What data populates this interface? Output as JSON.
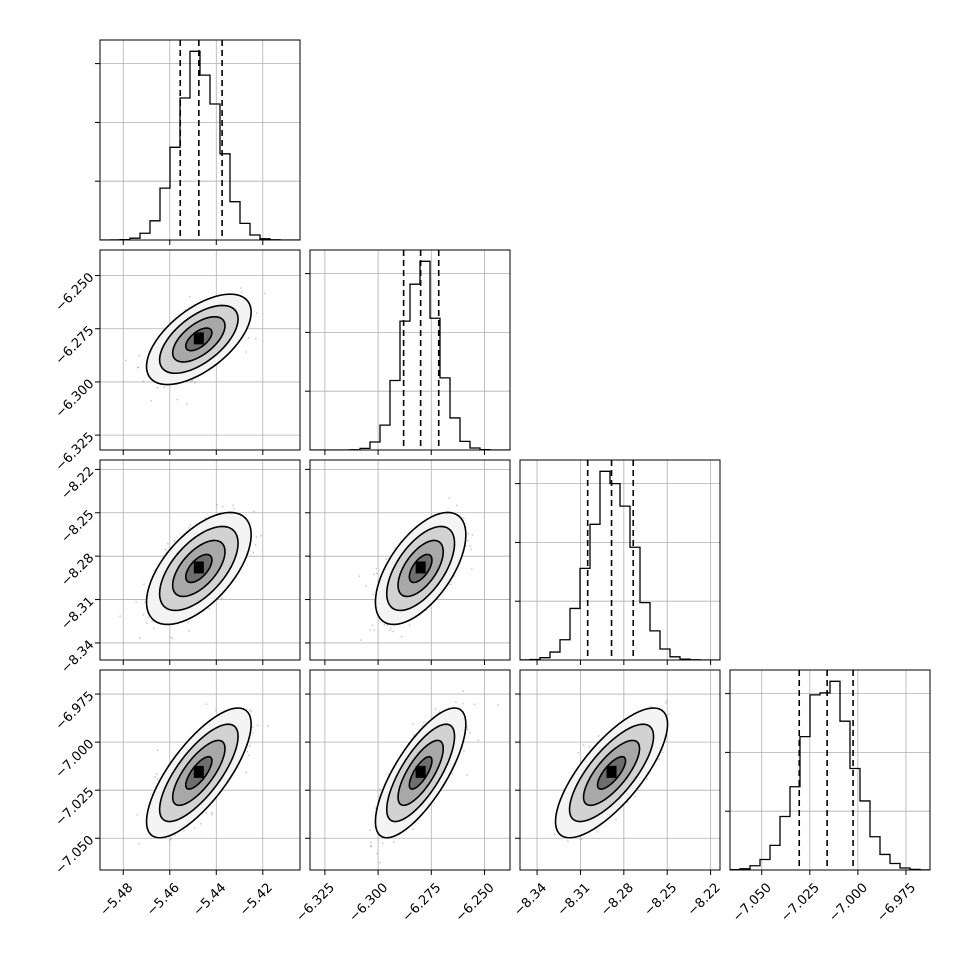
{
  "chart_data": {
    "type": "corner",
    "title": "",
    "colors": {
      "line": "#000000",
      "grid": "#b0b0b0",
      "points": "#8a8a8a"
    },
    "parameters": [
      {
        "median": -5.4475,
        "q16": -5.4555,
        "q84": -5.4375,
        "sigma": 0.009,
        "range": [
          -5.49,
          -5.404
        ],
        "ticks": [
          -5.48,
          -5.46,
          -5.44,
          -5.42
        ],
        "tick_labels": [
          "−5.48",
          "−5.46",
          "−5.44",
          "−5.42"
        ]
      },
      {
        "median": -6.28,
        "q16": -6.288,
        "q84": -6.2715,
        "sigma": 0.0085,
        "range": [
          -6.332,
          -6.238
        ],
        "ticks": [
          -6.325,
          -6.3,
          -6.275,
          -6.25
        ],
        "tick_labels": [
          "−6.325",
          "−6.300",
          "−6.275",
          "−6.250"
        ]
      },
      {
        "median": -8.2885,
        "q16": -8.305,
        "q84": -8.2735,
        "sigma": 0.0155,
        "range": [
          -8.3518,
          -8.2135
        ],
        "ticks": [
          -8.34,
          -8.31,
          -8.28,
          -8.25,
          -8.22
        ],
        "tick_labels": [
          "−8.34",
          "−8.31",
          "−8.28",
          "−8.25",
          "−8.22"
        ]
      },
      {
        "median": -7.016,
        "q16": -7.0305,
        "q84": -7.0025,
        "sigma": 0.0135,
        "range": [
          -7.0665,
          -6.9625
        ],
        "ticks": [
          -7.05,
          -7.025,
          -7.0,
          -6.975
        ],
        "tick_labels": [
          "−7.050",
          "−7.025",
          "−7.000",
          "−6.975"
        ]
      }
    ],
    "correlations": [
      [
        1.0,
        0.6,
        0.6,
        0.75
      ],
      [
        0.6,
        1.0,
        0.6,
        0.75
      ],
      [
        0.6,
        0.6,
        1.0,
        0.75
      ],
      [
        0.75,
        0.75,
        0.75,
        1.0
      ]
    ],
    "contour_levels_sigma": [
      0.5,
      1.0,
      1.5,
      2.0
    ],
    "grid": true
  }
}
